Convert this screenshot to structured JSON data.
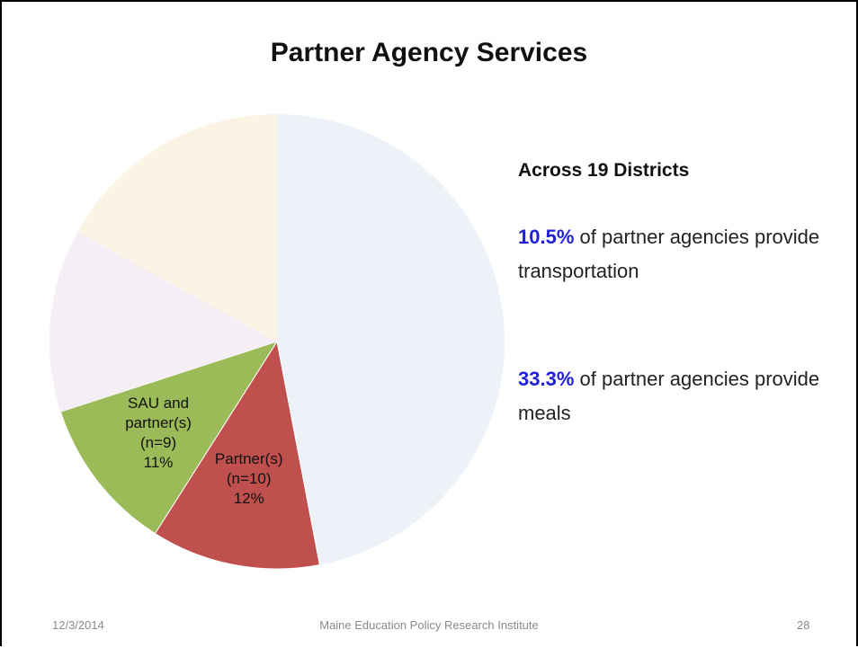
{
  "chart_data": {
    "type": "pie",
    "title": "Partner Agency Services",
    "categories": [
      null,
      "Partner(s) (n=10)",
      "SAU and partner(s) (n=9)",
      null,
      null
    ],
    "values": [
      47,
      12,
      11,
      13,
      17
    ],
    "value_labels": [
      null,
      "12%",
      "11%",
      null,
      null
    ],
    "colors": [
      "#edf2f9",
      "#c0504d",
      "#9bbb59",
      "#f5eef5",
      "#fbf4e4"
    ]
  },
  "side_panel": {
    "heading": "Across 19 Districts",
    "notes": [
      {
        "highlight": "10.5%",
        "text": "of partner agencies provide transportation"
      },
      {
        "highlight": "33.3%",
        "text": "of partner agencies provide meals"
      }
    ]
  },
  "footer": {
    "date": "12/3/2014",
    "organization": "Maine Education Policy Research Institute",
    "page": "28"
  }
}
